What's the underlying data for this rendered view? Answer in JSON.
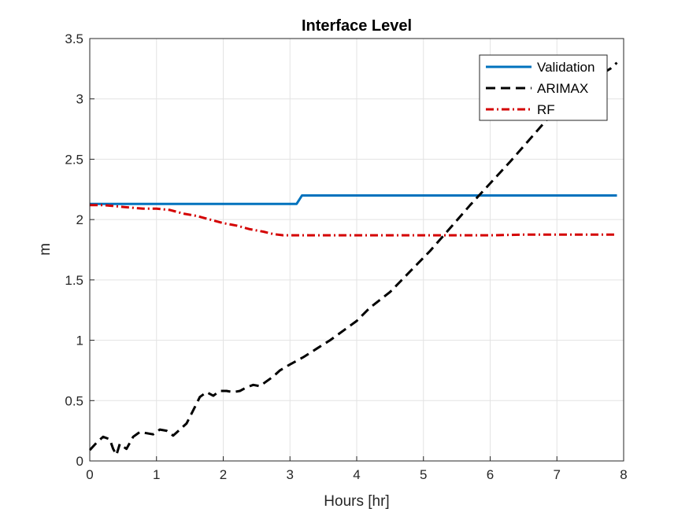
{
  "chart_data": {
    "type": "line",
    "title": "Interface Level",
    "xlabel": "Hours [hr]",
    "ylabel": "m",
    "xlim": [
      0,
      8
    ],
    "ylim": [
      0,
      3.5
    ],
    "xticks": [
      "0",
      "1",
      "2",
      "3",
      "4",
      "5",
      "6",
      "7",
      "8"
    ],
    "yticks": [
      "0",
      "0.5",
      "1",
      "1.5",
      "2",
      "2.5",
      "3",
      "3.5"
    ],
    "grid": true,
    "legend_position": "top-right",
    "series": [
      {
        "name": "Validation",
        "color": "#0072BD",
        "style": "solid",
        "x": [
          0,
          3.1,
          3.18,
          7.9
        ],
        "y": [
          2.13,
          2.13,
          2.2,
          2.2
        ]
      },
      {
        "name": "ARIMAX",
        "color": "#000000",
        "style": "dashed",
        "x": [
          0,
          0.1,
          0.2,
          0.3,
          0.35,
          0.4,
          0.45,
          0.55,
          0.65,
          0.75,
          0.85,
          0.95,
          1.05,
          1.15,
          1.25,
          1.35,
          1.45,
          1.55,
          1.65,
          1.75,
          1.85,
          1.95,
          2.05,
          2.15,
          2.25,
          2.35,
          2.45,
          2.55,
          2.65,
          2.75,
          2.85,
          3.0,
          3.2,
          3.4,
          3.6,
          3.8,
          4.0,
          4.2,
          4.5,
          4.8,
          5.1,
          5.4,
          5.7,
          6.0,
          6.3,
          6.6,
          6.9,
          7.2,
          7.5,
          7.8,
          7.9
        ],
        "y": [
          0.09,
          0.15,
          0.2,
          0.18,
          0.1,
          0.05,
          0.14,
          0.1,
          0.2,
          0.24,
          0.23,
          0.22,
          0.26,
          0.25,
          0.21,
          0.26,
          0.31,
          0.42,
          0.53,
          0.57,
          0.54,
          0.58,
          0.58,
          0.57,
          0.58,
          0.61,
          0.63,
          0.62,
          0.66,
          0.7,
          0.75,
          0.8,
          0.86,
          0.93,
          1.0,
          1.08,
          1.16,
          1.27,
          1.4,
          1.57,
          1.74,
          1.93,
          2.12,
          2.3,
          2.48,
          2.67,
          2.86,
          3.03,
          3.15,
          3.25,
          3.3
        ]
      },
      {
        "name": "RF",
        "color": "#D40000",
        "style": "dash-dot",
        "x": [
          0,
          0.2,
          0.4,
          0.6,
          0.8,
          1.0,
          1.2,
          1.4,
          1.6,
          1.8,
          2.0,
          2.2,
          2.4,
          2.6,
          2.75,
          2.9,
          3.2,
          3.6,
          4.0,
          4.5,
          5.0,
          5.5,
          6.0,
          6.5,
          7.0,
          7.5,
          7.9
        ],
        "y": [
          2.12,
          2.12,
          2.11,
          2.1,
          2.09,
          2.09,
          2.08,
          2.05,
          2.03,
          2.0,
          1.97,
          1.95,
          1.92,
          1.9,
          1.88,
          1.87,
          1.87,
          1.87,
          1.87,
          1.87,
          1.87,
          1.87,
          1.87,
          1.875,
          1.875,
          1.875,
          1.875
        ]
      }
    ]
  }
}
